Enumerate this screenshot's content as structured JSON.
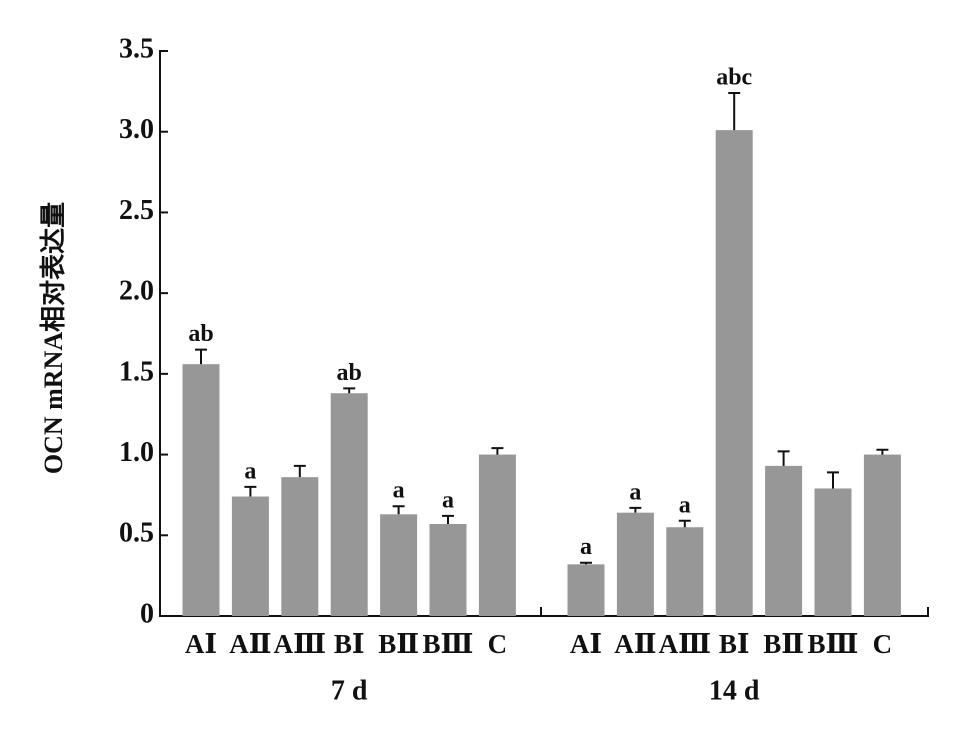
{
  "chart_data": {
    "type": "bar",
    "ylabel": "OCN mRNA相对表达量",
    "categories": [
      "AⅠ",
      "AⅡ",
      "AⅢ",
      "BⅠ",
      "BⅡ",
      "BⅢ",
      "C"
    ],
    "groups": [
      {
        "name": "7 d",
        "values": [
          1.56,
          0.74,
          0.86,
          1.38,
          0.63,
          0.57,
          1.0
        ],
        "errors": [
          0.09,
          0.06,
          0.07,
          0.03,
          0.05,
          0.05,
          0.04
        ],
        "annotations": [
          "ab",
          "a",
          null,
          "ab",
          "a",
          "a",
          null
        ]
      },
      {
        "name": "14 d",
        "values": [
          0.32,
          0.64,
          0.55,
          3.01,
          0.93,
          0.79,
          1.0
        ],
        "errors": [
          0.01,
          0.03,
          0.04,
          0.23,
          0.09,
          0.1,
          0.03
        ],
        "annotations": [
          "a",
          "a",
          "a",
          "abc",
          null,
          null,
          null
        ]
      }
    ],
    "color": "#979797",
    "ylim": [
      0,
      3.5
    ],
    "yticks": [
      0,
      0.5,
      {
        "value": 1,
        "label": "1.0"
      },
      1.5,
      {
        "value": 2,
        "label": "2.0"
      },
      2.5,
      {
        "value": 3,
        "label": "3.0"
      },
      3.5
    ]
  }
}
